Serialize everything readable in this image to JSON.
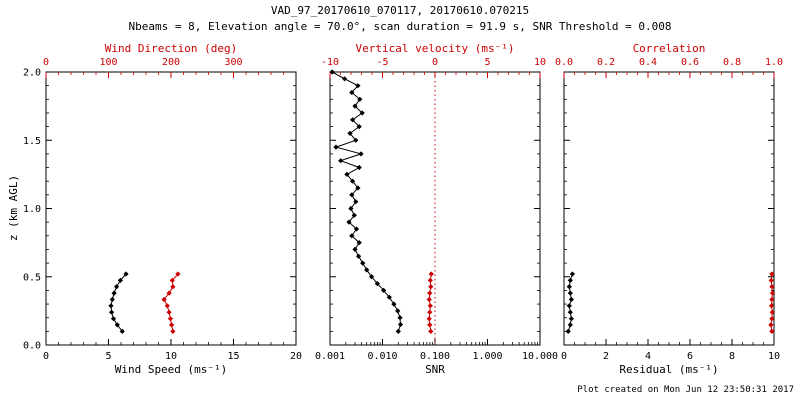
{
  "title": "VAD_97_20170610_070117, 20170610.070215",
  "subtitle": "Nbeams = 8, Elevation angle = 70.0°, scan duration = 91.9 s, SNR Threshold = 0.008",
  "footer": "Plot created on Mon Jun 12 23:50:31 2017",
  "colors": {
    "black": "#000000",
    "red": "#cc0000"
  },
  "y_axis": {
    "label": "z (km AGL)",
    "lim": [
      0.0,
      2.0
    ],
    "minor": 0.1,
    "ticks": [
      {
        "v": 0.0,
        "label": "0.0"
      },
      {
        "v": 0.5,
        "label": "0.5"
      },
      {
        "v": 1.0,
        "label": "1.0"
      },
      {
        "v": 1.5,
        "label": "1.5"
      },
      {
        "v": 2.0,
        "label": "2.0"
      }
    ]
  },
  "chart_data": [
    {
      "type": "line",
      "name": "wind",
      "bottom": {
        "name": "wind-speed-axis",
        "label": "Wind Speed (ms⁻¹)",
        "lim": [
          0,
          20
        ],
        "scale": "linear",
        "minor": 1,
        "color": "black",
        "tick_values": [
          0,
          5,
          10,
          15,
          20
        ],
        "tick_labels": [
          "0",
          "5",
          "10",
          "15",
          "20"
        ]
      },
      "top": {
        "name": "wind-direction-axis",
        "label": "Wind Direction (deg)",
        "lim": [
          0,
          400
        ],
        "scale": "linear",
        "minor": 20,
        "color": "red",
        "tick_values": [
          0,
          100,
          200,
          300
        ],
        "tick_labels": [
          "0",
          "100",
          "200",
          "300"
        ]
      },
      "series": [
        {
          "name": "wind-speed",
          "axis": "bottom",
          "color": "black",
          "z": [
            0.1,
            0.147,
            0.193,
            0.24,
            0.287,
            0.333,
            0.38,
            0.427,
            0.473,
            0.52
          ],
          "values": [
            6.1,
            5.7,
            5.4,
            5.25,
            5.2,
            5.3,
            5.45,
            5.65,
            5.95,
            6.4
          ]
        },
        {
          "name": "wind-direction",
          "axis": "top",
          "color": "red",
          "z": [
            0.1,
            0.147,
            0.193,
            0.24,
            0.287,
            0.333,
            0.38,
            0.427,
            0.473,
            0.52
          ],
          "values": [
            203,
            201,
            199,
            197,
            194,
            189,
            197,
            203,
            202,
            211
          ]
        }
      ]
    },
    {
      "type": "line",
      "name": "snr",
      "bottom": {
        "name": "snr-axis",
        "label": "SNR",
        "lim": [
          0.001,
          10
        ],
        "scale": "log",
        "color": "black",
        "tick_values": [
          0.001,
          0.01,
          0.1,
          1,
          10
        ],
        "tick_labels": [
          "0.001",
          "0.010",
          "0.100",
          "1.000",
          "10.000"
        ]
      },
      "top": {
        "name": "vertical-velocity-axis",
        "label": "Vertical velocity (ms⁻¹)",
        "lim": [
          -10,
          10
        ],
        "scale": "linear",
        "minor": 1,
        "color": "red",
        "tick_values": [
          -10,
          -5,
          0,
          5,
          10
        ],
        "tick_labels": [
          "-10",
          "-5",
          "0",
          "5",
          "10"
        ]
      },
      "refline": {
        "axis": "top",
        "value": 0,
        "color": "red",
        "style": "dotted"
      },
      "series": [
        {
          "name": "snr",
          "axis": "bottom",
          "color": "black",
          "z": [
            0.1,
            0.15,
            0.2,
            0.25,
            0.3,
            0.35,
            0.4,
            0.45,
            0.5,
            0.55,
            0.6,
            0.65,
            0.7,
            0.75,
            0.8,
            0.85,
            0.9,
            0.95,
            1.0,
            1.05,
            1.1,
            1.15,
            1.2,
            1.25,
            1.3,
            1.35,
            1.4,
            1.45,
            1.5,
            1.55,
            1.6,
            1.65,
            1.7,
            1.75,
            1.8,
            1.85,
            1.9,
            1.95,
            2.0
          ],
          "values": [
            0.02,
            0.022,
            0.0215,
            0.0195,
            0.0165,
            0.0135,
            0.0105,
            0.008,
            0.0062,
            0.005,
            0.0042,
            0.0035,
            0.003,
            0.0036,
            0.0026,
            0.0032,
            0.0023,
            0.0029,
            0.0025,
            0.0031,
            0.0026,
            0.0034,
            0.0027,
            0.0021,
            0.0036,
            0.0016,
            0.0039,
            0.0013,
            0.0031,
            0.0024,
            0.0036,
            0.0027,
            0.0041,
            0.003,
            0.0037,
            0.0026,
            0.0034,
            0.0019,
            0.0011
          ]
        },
        {
          "name": "vertical-velocity",
          "axis": "top",
          "color": "red",
          "z": [
            0.1,
            0.147,
            0.193,
            0.24,
            0.287,
            0.333,
            0.38,
            0.427,
            0.473,
            0.52
          ],
          "values": [
            -0.4,
            -0.5,
            -0.55,
            -0.5,
            -0.45,
            -0.55,
            -0.5,
            -0.4,
            -0.45,
            -0.35
          ]
        }
      ]
    },
    {
      "type": "line",
      "name": "residual",
      "bottom": {
        "name": "residual-axis",
        "label": "Residual (ms⁻¹)",
        "lim": [
          0,
          10
        ],
        "scale": "linear",
        "minor": 0.5,
        "color": "black",
        "tick_values": [
          0,
          2,
          4,
          6,
          8,
          10
        ],
        "tick_labels": [
          "0",
          "2",
          "4",
          "6",
          "8",
          "10"
        ]
      },
      "top": {
        "name": "correlation-axis",
        "label": "Correlation",
        "lim": [
          0,
          1
        ],
        "scale": "linear",
        "minor": 0.05,
        "color": "red",
        "tick_values": [
          0,
          0.2,
          0.4,
          0.6,
          0.8,
          1.0
        ],
        "tick_labels": [
          "0.0",
          "0.2",
          "0.4",
          "0.6",
          "0.8",
          "1.0"
        ]
      },
      "series": [
        {
          "name": "residual",
          "axis": "bottom",
          "color": "black",
          "z": [
            0.1,
            0.147,
            0.193,
            0.24,
            0.287,
            0.333,
            0.38,
            0.427,
            0.473,
            0.52
          ],
          "values": [
            0.2,
            0.3,
            0.35,
            0.3,
            0.25,
            0.35,
            0.3,
            0.25,
            0.3,
            0.4
          ]
        },
        {
          "name": "correlation",
          "axis": "top",
          "color": "red",
          "z": [
            0.1,
            0.147,
            0.193,
            0.24,
            0.287,
            0.333,
            0.38,
            0.427,
            0.473,
            0.52
          ],
          "values": [
            0.99,
            0.985,
            0.99,
            0.992,
            0.988,
            0.99,
            0.993,
            0.99,
            0.987,
            0.99
          ]
        }
      ]
    }
  ]
}
